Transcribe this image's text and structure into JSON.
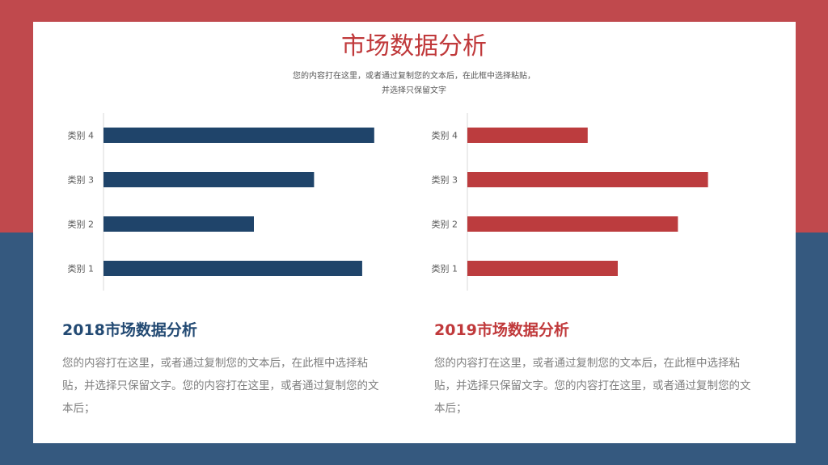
{
  "colors": {
    "red": "#c0494d",
    "blue": "#35597f",
    "blue_bar": "#1f446a",
    "red_bar": "#bc3c3e",
    "title_red": "#c0393b",
    "heading_blue": "#234a73"
  },
  "header": {
    "title": "市场数据分析",
    "subtitle_line1": "您的内容打在这里，或者通过复制您的文本后，在此框中选择粘贴，",
    "subtitle_line2": "并选择只保留文字"
  },
  "chart_data": [
    {
      "type": "bar",
      "orientation": "horizontal",
      "categories": [
        "类别 1",
        "类别 2",
        "类别 3",
        "类别 4"
      ],
      "values": [
        4.3,
        2.5,
        3.5,
        4.5
      ],
      "xlim": [
        0,
        5
      ],
      "grid": false,
      "color": "#1f446a"
    },
    {
      "type": "bar",
      "orientation": "horizontal",
      "categories": [
        "类别 1",
        "类别 2",
        "类别 3",
        "类别 4"
      ],
      "values": [
        2.5,
        3.5,
        4.0,
        2.0
      ],
      "xlim": [
        0,
        5
      ],
      "grid": false,
      "color": "#bc3c3e"
    }
  ],
  "sections": {
    "left": {
      "title": "2018市场数据分析",
      "body": "您的内容打在这里，或者通过复制您的文本后，在此框中选择粘贴，并选择只保留文字。您的内容打在这里，或者通过复制您的文本后；"
    },
    "right": {
      "title": "2019市场数据分析",
      "body": "您的内容打在这里，或者通过复制您的文本后，在此框中选择粘贴，并选择只保留文字。您的内容打在这里，或者通过复制您的文本后；"
    }
  }
}
